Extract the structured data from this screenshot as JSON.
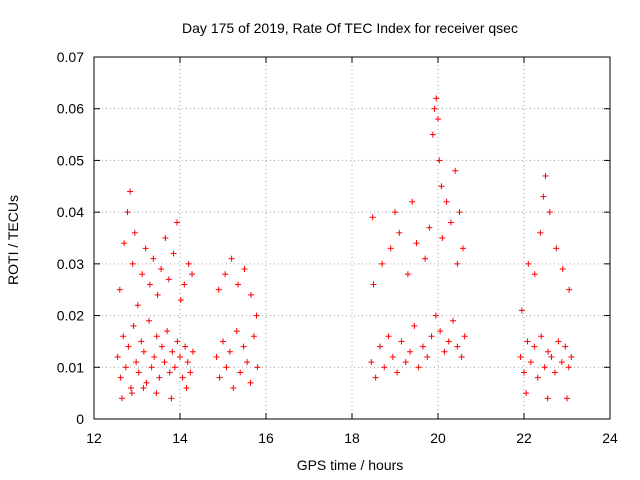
{
  "chart_data": {
    "type": "scatter",
    "title": "Day 175 of 2019, Rate Of TEC Index for receiver qsec",
    "xlabel": "GPS time / hours",
    "ylabel": "ROTI / TECUs",
    "xlim": [
      12,
      24
    ],
    "ylim": [
      0,
      0.07
    ],
    "xticks": [
      "12",
      "14",
      "16",
      "18",
      "20",
      "22",
      "24"
    ],
    "yticks": [
      "0",
      "0.01",
      "0.02",
      "0.03",
      "0.04",
      "0.05",
      "0.06",
      "0.07"
    ],
    "grid": true,
    "marker": "+",
    "marker_color": "#ff0000",
    "series": [
      {
        "name": "ROTI",
        "x": [
          12.55,
          12.62,
          12.68,
          12.74,
          12.8,
          12.86,
          12.92,
          12.98,
          13.04,
          13.1,
          13.16,
          13.22,
          13.28,
          13.34,
          13.4,
          13.46,
          13.52,
          13.58,
          13.64,
          13.7,
          13.76,
          13.82,
          13.88,
          13.94,
          14.0,
          14.06,
          14.12,
          14.18,
          14.24,
          14.3,
          12.6,
          12.7,
          12.78,
          12.84,
          12.9,
          12.95,
          13.02,
          13.12,
          13.2,
          13.3,
          13.38,
          13.48,
          13.56,
          13.66,
          13.74,
          13.85,
          13.93,
          14.02,
          14.1,
          14.2,
          14.28,
          12.65,
          12.88,
          13.15,
          13.45,
          13.8,
          14.15,
          14.85,
          14.92,
          15.0,
          15.08,
          15.16,
          15.24,
          15.32,
          15.4,
          15.48,
          15.56,
          15.64,
          15.72,
          15.8,
          14.9,
          15.05,
          15.2,
          15.35,
          15.5,
          15.65,
          15.78,
          18.45,
          18.55,
          18.65,
          18.75,
          18.85,
          18.95,
          19.05,
          19.15,
          19.25,
          19.35,
          19.45,
          19.55,
          19.65,
          19.75,
          19.85,
          19.95,
          20.05,
          20.15,
          20.25,
          20.35,
          20.45,
          20.55,
          20.62,
          18.5,
          18.7,
          18.9,
          19.1,
          19.3,
          19.5,
          19.7,
          19.88,
          19.92,
          19.96,
          20.0,
          20.03,
          20.08,
          20.2,
          20.3,
          20.4,
          20.5,
          20.58,
          18.48,
          19.0,
          19.4,
          19.8,
          20.1,
          20.45,
          21.92,
          22.0,
          22.08,
          22.16,
          22.24,
          22.32,
          22.4,
          22.48,
          22.56,
          22.64,
          22.72,
          22.8,
          22.88,
          22.96,
          23.04,
          23.1,
          21.95,
          22.1,
          22.25,
          22.38,
          22.45,
          22.5,
          22.6,
          22.75,
          22.9,
          23.05,
          22.05,
          22.55,
          23.0
        ],
        "y": [
          0.012,
          0.008,
          0.016,
          0.01,
          0.014,
          0.006,
          0.018,
          0.011,
          0.009,
          0.015,
          0.013,
          0.007,
          0.019,
          0.01,
          0.012,
          0.016,
          0.008,
          0.014,
          0.011,
          0.017,
          0.009,
          0.013,
          0.01,
          0.015,
          0.012,
          0.008,
          0.014,
          0.011,
          0.009,
          0.013,
          0.025,
          0.034,
          0.04,
          0.044,
          0.03,
          0.036,
          0.022,
          0.028,
          0.033,
          0.026,
          0.031,
          0.024,
          0.029,
          0.035,
          0.027,
          0.032,
          0.038,
          0.023,
          0.026,
          0.03,
          0.028,
          0.004,
          0.005,
          0.006,
          0.005,
          0.004,
          0.006,
          0.012,
          0.008,
          0.015,
          0.01,
          0.013,
          0.006,
          0.017,
          0.009,
          0.014,
          0.011,
          0.007,
          0.016,
          0.01,
          0.025,
          0.028,
          0.031,
          0.026,
          0.029,
          0.024,
          0.02,
          0.011,
          0.008,
          0.014,
          0.01,
          0.016,
          0.012,
          0.009,
          0.015,
          0.011,
          0.013,
          0.018,
          0.01,
          0.014,
          0.012,
          0.016,
          0.02,
          0.017,
          0.013,
          0.015,
          0.019,
          0.014,
          0.012,
          0.016,
          0.026,
          0.03,
          0.033,
          0.036,
          0.028,
          0.034,
          0.031,
          0.055,
          0.06,
          0.062,
          0.058,
          0.05,
          0.045,
          0.042,
          0.038,
          0.048,
          0.04,
          0.033,
          0.039,
          0.04,
          0.042,
          0.037,
          0.035,
          0.03,
          0.012,
          0.009,
          0.015,
          0.011,
          0.014,
          0.008,
          0.016,
          0.01,
          0.013,
          0.012,
          0.009,
          0.015,
          0.011,
          0.014,
          0.01,
          0.012,
          0.021,
          0.03,
          0.028,
          0.036,
          0.043,
          0.047,
          0.04,
          0.033,
          0.029,
          0.025,
          0.005,
          0.004,
          0.004
        ]
      }
    ]
  }
}
